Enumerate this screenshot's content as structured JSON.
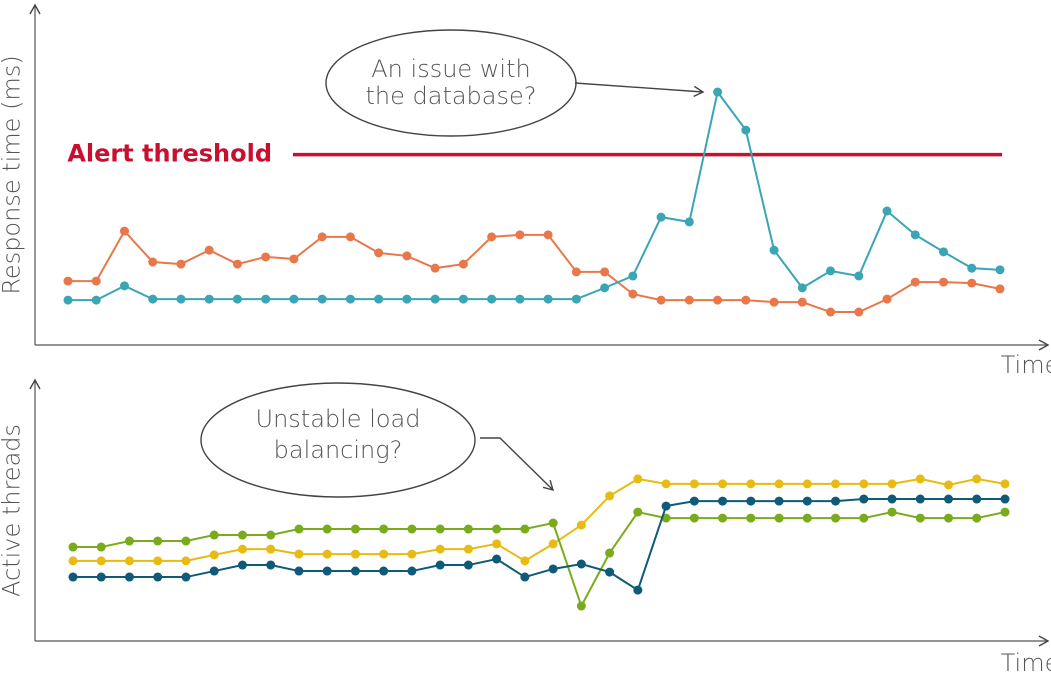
{
  "chart_data": [
    {
      "type": "line",
      "y_label": "Response time (ms)",
      "x_label": "Time",
      "ylim": [
        0,
        100
      ],
      "threshold": {
        "label": "Alert threshold",
        "value": 56,
        "color": "#c8102e"
      },
      "annotations": [
        {
          "text": [
            "An issue with",
            "the database?"
          ]
        }
      ],
      "series": [
        {
          "color": "#e8784a",
          "values": [
            18.8,
            18.8,
            33.5,
            24.4,
            23.8,
            27.9,
            23.8,
            25.9,
            25.3,
            31.8,
            31.8,
            27.1,
            26.2,
            22.6,
            23.8,
            31.8,
            32.4,
            32.4,
            21.5,
            21.5,
            15,
            13.2,
            13.2,
            13.2,
            13.2,
            12.6,
            12.6,
            9.7,
            9.7,
            13.5,
            18.5,
            18.5,
            18.2,
            16.5
          ]
        },
        {
          "color": "#3aa5b5",
          "values": [
            13.2,
            13.2,
            17.4,
            13.5,
            13.5,
            13.5,
            13.5,
            13.5,
            13.5,
            13.5,
            13.5,
            13.5,
            13.5,
            13.5,
            13.5,
            13.5,
            13.5,
            13.5,
            13.5,
            16.8,
            20.3,
            37.6,
            36.2,
            74.4,
            63.2,
            27.9,
            16.8,
            21.8,
            20.3,
            39.4,
            32.4,
            27.4,
            22.6,
            22.1
          ]
        }
      ]
    },
    {
      "type": "line",
      "y_label": "Active threads",
      "x_label": "Time",
      "ylim": [
        0,
        100
      ],
      "annotations": [
        {
          "text": [
            "Unstable load",
            "balancing?"
          ]
        }
      ],
      "series": [
        {
          "color": "#e8bb12",
          "values": [
            30.7,
            30.7,
            30.7,
            30.7,
            30.7,
            33.0,
            35.2,
            35.2,
            33.3,
            33.3,
            33.3,
            33.3,
            33.3,
            35.2,
            35.2,
            37.2,
            30.7,
            37.2,
            44.4,
            55.6,
            62.1,
            60.2,
            60.2,
            60.2,
            60.2,
            60.2,
            60.2,
            60.2,
            60.2,
            60.2,
            62.1,
            59.8,
            62.1,
            60.2
          ]
        },
        {
          "color": "#7aab1c",
          "values": [
            36.0,
            36.0,
            38.3,
            38.3,
            38.3,
            40.6,
            40.6,
            40.6,
            42.9,
            42.9,
            42.9,
            42.9,
            42.9,
            42.9,
            42.9,
            42.9,
            42.9,
            45.2,
            13.4,
            33.7,
            49.4,
            47.1,
            47.1,
            47.1,
            47.1,
            47.1,
            47.1,
            47.1,
            47.1,
            49.4,
            47.1,
            47.1,
            47.1,
            49.4
          ]
        },
        {
          "color": "#0e5a78",
          "values": [
            24.5,
            24.5,
            24.5,
            24.5,
            24.5,
            26.8,
            29.1,
            29.1,
            26.8,
            26.8,
            26.8,
            26.8,
            26.8,
            29.1,
            29.1,
            31.4,
            24.5,
            27.6,
            29.5,
            26.4,
            19.5,
            51.7,
            53.6,
            53.6,
            53.6,
            53.6,
            53.6,
            53.6,
            54.4,
            54.4,
            54.4,
            54.4,
            54.4,
            54.4
          ]
        }
      ]
    }
  ]
}
